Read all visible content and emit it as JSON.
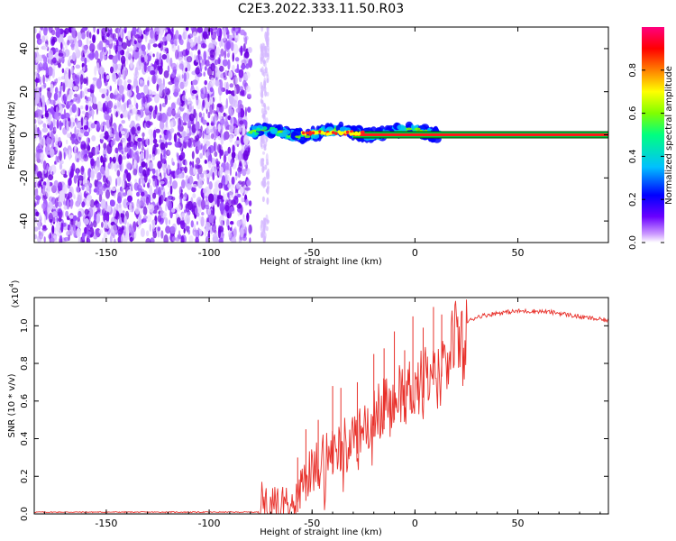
{
  "title": "C2E3.2022.333.11.50.R03",
  "chart_data": [
    {
      "type": "heatmap",
      "xlabel": "Height of straight line (km)",
      "ylabel": "Frequency (Hz)",
      "xlim": [
        -185,
        94
      ],
      "ylim": [
        -50,
        50
      ],
      "x_ticks": [
        "-150",
        "-100",
        "-50",
        "0",
        "50"
      ],
      "x_tick_values": [
        -150,
        -100,
        -50,
        0,
        50
      ],
      "y_ticks": [
        "-40",
        "-20",
        "0",
        "20",
        "40"
      ],
      "y_tick_values": [
        -40,
        -20,
        0,
        20,
        40
      ],
      "noise_region_x": [
        -185,
        -80
      ],
      "scatter_stripe_x": -73,
      "signal_start_x": -80,
      "colorbar": {
        "label": "Normalized spectral amplitude",
        "range": [
          0,
          1
        ],
        "ticks": [
          "0.0",
          "0.2",
          "0.4",
          "0.6",
          "0.8"
        ],
        "tick_values": [
          0,
          0.2,
          0.4,
          0.6,
          0.8
        ],
        "colors": [
          "#ffffff",
          "#cc99ff",
          "#6a00ff",
          "#0000ff",
          "#00c0ff",
          "#00ff80",
          "#80ff00",
          "#ffff00",
          "#ff8000",
          "#ff0000",
          "#ff007f"
        ]
      },
      "grid": false
    },
    {
      "type": "line",
      "xlabel": "Height of straight line (km)",
      "ylabel": "SNR (10 * v/v)",
      "y_multiplier": "(x10",
      "y_multiplier_exp": "4",
      "y_multiplier_close": ")",
      "xlim": [
        -185,
        94
      ],
      "ylim": [
        0,
        1.15
      ],
      "x_ticks": [
        "-150",
        "-100",
        "-50",
        "0",
        "50"
      ],
      "x_tick_values": [
        -150,
        -100,
        -50,
        0,
        50
      ],
      "y_ticks": [
        "0.0",
        "0.2",
        "0.4",
        "0.6",
        "0.8",
        "1.0"
      ],
      "y_tick_values": [
        0,
        0.2,
        0.4,
        0.6,
        0.8,
        1.0
      ],
      "color": "#e8302a",
      "x": [
        -185,
        -150,
        -100,
        -76,
        -74,
        -72,
        -70,
        -65,
        -60,
        -55,
        -50,
        -45,
        -40,
        -35,
        -30,
        -25,
        -20,
        -15,
        -10,
        -5,
        0,
        5,
        10,
        15,
        20,
        25,
        30,
        40,
        50,
        60,
        70,
        80,
        94
      ],
      "y": [
        0.01,
        0.01,
        0.01,
        0.01,
        0.12,
        0.06,
        0.05,
        0.08,
        0.1,
        0.2,
        0.25,
        0.33,
        0.36,
        0.4,
        0.45,
        0.5,
        0.56,
        0.6,
        0.65,
        0.68,
        0.72,
        0.78,
        0.85,
        0.9,
        0.97,
        1.02,
        1.05,
        1.07,
        1.08,
        1.08,
        1.07,
        1.05,
        1.03
      ],
      "spike_x": [
        -57,
        -53,
        -47,
        -40,
        -36,
        -28,
        -20,
        -15,
        -10,
        -5,
        -1,
        4,
        9,
        13
      ],
      "spike_y": [
        0.3,
        0.45,
        0.5,
        0.68,
        0.67,
        0.7,
        0.85,
        0.88,
        0.97,
        0.87,
        1.05,
        0.99,
        1.1,
        1.06
      ],
      "grid": false
    }
  ]
}
